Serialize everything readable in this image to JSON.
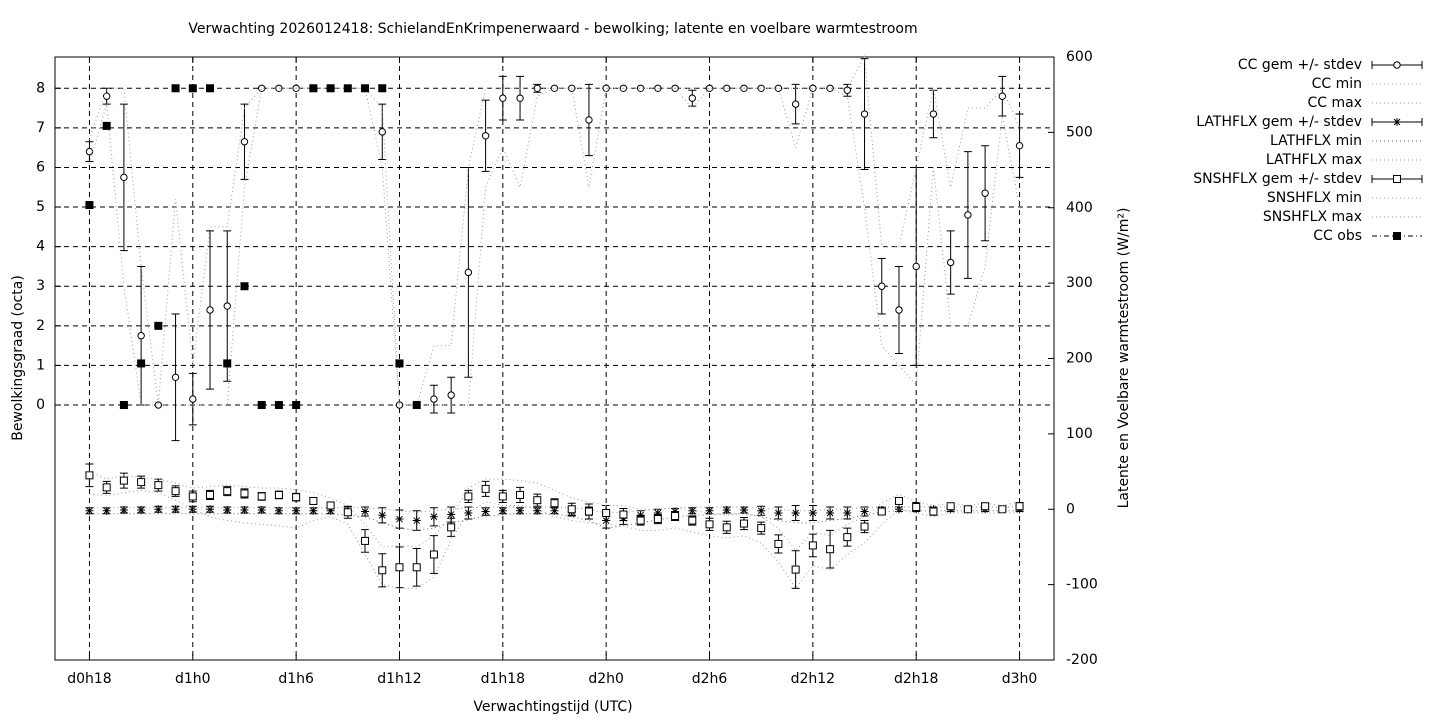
{
  "chart_data": {
    "type": "errorbar",
    "title": "Verwachting 2026012418: SchielandEnKrimpenerwaard - bewolking; latente en voelbare warmtestroom",
    "x_label": "Verwachtingstijd (UTC)",
    "y_label": "Bewolkingsgraad (octa)",
    "y2_label": "Latente en Voelbare warmtestroom (W/m²)",
    "x": [
      18,
      19,
      20,
      21,
      22,
      23,
      24,
      25,
      26,
      27,
      28,
      29,
      30,
      31,
      32,
      33,
      34,
      35,
      36,
      37,
      38,
      39,
      40,
      41,
      42,
      43,
      44,
      45,
      46,
      47,
      48,
      49,
      50,
      51,
      52,
      53,
      54,
      55,
      56,
      57,
      58,
      59,
      60,
      61,
      62,
      63,
      64,
      65,
      66,
      67,
      68,
      69,
      70,
      71,
      72
    ],
    "xlim": [
      16,
      74
    ],
    "xticks": [
      {
        "value": 18,
        "label": "d0h18"
      },
      {
        "value": 24,
        "label": "d1h0"
      },
      {
        "value": 30,
        "label": "d1h6"
      },
      {
        "value": 36,
        "label": "d1h12"
      },
      {
        "value": 42,
        "label": "d1h18"
      },
      {
        "value": 48,
        "label": "d2h0"
      },
      {
        "value": 54,
        "label": "d2h6"
      },
      {
        "value": 60,
        "label": "d2h12"
      },
      {
        "value": 66,
        "label": "d2h18"
      },
      {
        "value": 72,
        "label": "d3h0"
      }
    ],
    "ylim": [
      -6.44,
      8.79
    ],
    "yticks": [
      0,
      1,
      2,
      3,
      4,
      5,
      6,
      7,
      8
    ],
    "y2lim": [
      -200,
      600
    ],
    "y2ticks": [
      -200,
      -100,
      0,
      100,
      200,
      300,
      400,
      500,
      600
    ],
    "grid": true,
    "legend": "outside-right",
    "series": [
      {
        "name": "CC gem +/- stdev",
        "color": "#000000",
        "marker": "circle",
        "axis": "y",
        "values": [
          6.4,
          7.8,
          5.75,
          1.75,
          0,
          0.7,
          0.15,
          2.4,
          2.5,
          6.65,
          8,
          8,
          8,
          8,
          8,
          8,
          8,
          6.9,
          0,
          0,
          0.15,
          0.25,
          3.35,
          6.8,
          7.75,
          7.75,
          8,
          8,
          8,
          7.2,
          8,
          8,
          8,
          8,
          8,
          7.75,
          8,
          8,
          8,
          8,
          8,
          7.6,
          8,
          8,
          7.95,
          7.35,
          3,
          2.4,
          3.5,
          7.35,
          3.6,
          4.8,
          5.35,
          7.8,
          6.55
        ],
        "stdev": [
          0.25,
          0.2,
          1.85,
          1.75,
          0,
          1.6,
          0.65,
          2,
          1.9,
          0.95,
          0,
          0,
          0,
          0,
          0,
          0,
          0,
          0.7,
          0,
          0,
          0.35,
          0.45,
          2.65,
          0.9,
          0.55,
          0.55,
          0.1,
          0,
          0,
          0.9,
          0,
          0,
          0,
          0,
          0,
          0.2,
          0,
          0,
          0,
          0,
          0,
          0.5,
          0,
          0,
          0.15,
          1.4,
          0.7,
          1.1,
          2.5,
          0.6,
          0.8,
          1.6,
          1.2,
          0.5,
          0.8
        ]
      },
      {
        "name": "CC min",
        "color": "#999999",
        "style": "dotted",
        "axis": "y",
        "values": [
          6.1,
          7.6,
          3,
          0,
          0,
          0,
          0,
          0,
          0,
          5.5,
          8,
          8,
          8,
          8,
          8,
          8,
          8,
          6,
          0,
          0,
          0,
          0,
          0,
          5.5,
          6.5,
          5.5,
          7.8,
          8,
          8,
          5.5,
          8,
          8,
          8,
          8,
          8,
          7.5,
          8,
          8,
          8,
          8,
          8,
          6.5,
          8,
          8,
          7.8,
          5,
          1.5,
          1,
          0.5,
          6,
          2,
          2,
          3.5,
          7.3,
          5
        ]
      },
      {
        "name": "CC max",
        "color": "#999999",
        "style": "dotted",
        "axis": "y",
        "values": [
          6.7,
          8,
          8,
          3.5,
          0,
          5.2,
          1,
          4.5,
          4.5,
          7.5,
          8,
          8,
          8,
          8,
          8,
          8,
          8,
          7.5,
          0,
          0,
          1.5,
          1.5,
          6,
          8,
          8,
          8,
          8,
          8,
          8,
          8,
          8,
          8,
          8,
          8,
          8,
          8,
          8,
          8,
          8,
          8,
          8,
          8,
          8,
          8,
          8,
          8.8,
          4,
          4,
          6,
          8,
          5.5,
          7.5,
          7.5,
          8,
          7
        ]
      },
      {
        "name": "LATHFLX gem +/- stdev",
        "color": "#000000",
        "marker": "star",
        "axis": "y2",
        "values": [
          -2,
          -2,
          -1,
          -1,
          0,
          0,
          0,
          0,
          -1,
          -1,
          -1,
          -2,
          -2,
          -2,
          -2,
          -2,
          -3,
          -8,
          -13,
          -15,
          -10,
          -7,
          -5,
          -3,
          -2,
          -2,
          -2,
          -2,
          -3,
          -5,
          -15,
          -12,
          -8,
          -5,
          -3,
          -2,
          -2,
          -1,
          -1,
          -2,
          -5,
          -5,
          -5,
          -5,
          -5,
          -3,
          -1,
          0,
          0,
          0,
          0,
          0,
          0,
          0,
          0
        ],
        "stdev": [
          4,
          4,
          4,
          4,
          4,
          4,
          4,
          4,
          4,
          4,
          4,
          4,
          4,
          4,
          4,
          5,
          6,
          10,
          12,
          13,
          12,
          10,
          8,
          5,
          4,
          4,
          4,
          4,
          6,
          8,
          10,
          8,
          6,
          5,
          4,
          4,
          4,
          4,
          4,
          6,
          8,
          10,
          10,
          8,
          8,
          6,
          4,
          3,
          3,
          3,
          3,
          3,
          3,
          3,
          3
        ]
      },
      {
        "name": "LATHFLX min",
        "color": "#666666",
        "style": "dotted",
        "axis": "y2",
        "values": [
          -6,
          -6,
          -6,
          -6,
          -6,
          -6,
          -6,
          -6,
          -6,
          -6,
          -6,
          -6,
          -6,
          -6,
          -6,
          -8,
          -10,
          -18,
          -25,
          -28,
          -25,
          -18,
          -14,
          -9,
          -7,
          -6,
          -6,
          -6,
          -10,
          -15,
          -25,
          -22,
          -18,
          -14,
          -10,
          -8,
          -7,
          -6,
          -6,
          -10,
          -15,
          -18,
          -18,
          -15,
          -12,
          -8,
          -4,
          -2,
          -2,
          -2,
          -2,
          -2,
          -2,
          -2,
          -2
        ]
      },
      {
        "name": "LATHFLX max",
        "color": "#999999",
        "style": "dotted",
        "axis": "y2",
        "values": [
          2,
          2,
          2,
          2,
          2,
          2,
          2,
          2,
          2,
          2,
          2,
          2,
          2,
          2,
          2,
          3,
          2,
          0,
          -2,
          -4,
          -2,
          0,
          2,
          3,
          3,
          3,
          3,
          3,
          2,
          0,
          -5,
          -4,
          -2,
          0,
          2,
          3,
          3,
          3,
          3,
          2,
          0,
          -2,
          -2,
          0,
          0,
          2,
          3,
          3,
          3,
          3,
          3,
          3,
          3,
          3,
          3
        ]
      },
      {
        "name": "SNSHFLX gem +/- stdev",
        "color": "#000000",
        "marker": "square",
        "axis": "y2",
        "values": [
          45,
          29,
          38,
          36,
          32,
          24,
          17,
          19,
          24,
          21,
          17,
          19,
          16,
          11,
          5,
          -4,
          -42,
          -81,
          -77,
          -77,
          -60,
          -24,
          17,
          27,
          17,
          19,
          12,
          8,
          0,
          -3,
          -5,
          -7,
          -15,
          -13,
          -9,
          -15,
          -20,
          -24,
          -19,
          -25,
          -46,
          -80,
          -48,
          -53,
          -37,
          -23,
          -3,
          11,
          3,
          -3,
          4,
          0,
          4,
          0,
          4
        ],
        "stdev": [
          15,
          8,
          10,
          8,
          8,
          7,
          7,
          6,
          6,
          6,
          5,
          5,
          5,
          4,
          4,
          8,
          15,
          22,
          27,
          25,
          25,
          12,
          8,
          10,
          8,
          10,
          8,
          6,
          8,
          10,
          10,
          8,
          6,
          6,
          6,
          6,
          8,
          8,
          8,
          8,
          12,
          25,
          15,
          25,
          12,
          8,
          4,
          4,
          6,
          5,
          4,
          3,
          4,
          3,
          5
        ]
      },
      {
        "name": "SNSHFLX min",
        "color": "#999999",
        "style": "dotted",
        "axis": "y2",
        "values": [
          20,
          18,
          22,
          25,
          22,
          12,
          0,
          -10,
          -15,
          -18,
          -20,
          -22,
          -25,
          -15,
          -10,
          -20,
          -60,
          -100,
          -105,
          -105,
          -90,
          -40,
          -5,
          10,
          5,
          5,
          0,
          -10,
          -15,
          -18,
          -20,
          -22,
          -28,
          -28,
          -25,
          -30,
          -35,
          -38,
          -35,
          -45,
          -70,
          -105,
          -75,
          -80,
          -60,
          -45,
          -20,
          0,
          -5,
          -10,
          -5,
          -5,
          -5,
          -5,
          -5
        ]
      },
      {
        "name": "SNSHFLX max",
        "color": "#999999",
        "style": "dotted",
        "axis": "y2",
        "values": [
          50,
          40,
          45,
          42,
          40,
          35,
          28,
          30,
          32,
          30,
          28,
          28,
          26,
          22,
          15,
          5,
          -20,
          -50,
          -48,
          -50,
          -35,
          -10,
          28,
          40,
          40,
          38,
          35,
          25,
          15,
          10,
          5,
          5,
          0,
          0,
          2,
          -2,
          -5,
          -8,
          -5,
          -10,
          -25,
          -55,
          -30,
          -35,
          -20,
          -10,
          8,
          20,
          10,
          5,
          8,
          5,
          8,
          5,
          10
        ]
      },
      {
        "name": "CC obs",
        "color": "#000000",
        "marker": "filled-square",
        "style": "dashdot",
        "axis": "y",
        "values": [
          5.05,
          7.05,
          0,
          1.05,
          2,
          8,
          8,
          8,
          1.05,
          3,
          0,
          0,
          0,
          8,
          8,
          8,
          8,
          8,
          1.05,
          0,
          null,
          null,
          null,
          null,
          null,
          null,
          null,
          null,
          null,
          null,
          null,
          null,
          null,
          null,
          null,
          null,
          null,
          null,
          null,
          null,
          null,
          null,
          null,
          null,
          null,
          null,
          null,
          null,
          null,
          null,
          null,
          null,
          null,
          null,
          null
        ]
      }
    ]
  }
}
